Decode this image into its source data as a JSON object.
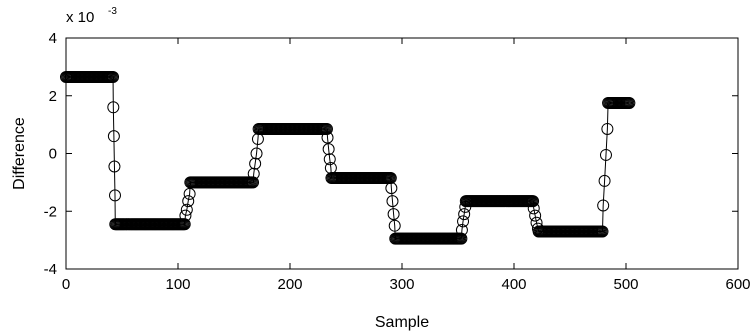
{
  "chart_data": {
    "type": "line",
    "title": "",
    "xlabel": "Sample",
    "ylabel": "Difference",
    "xlim": [
      0,
      600
    ],
    "ylim": [
      -4,
      4
    ],
    "x_ticks": [
      0,
      100,
      200,
      300,
      400,
      500,
      600
    ],
    "y_ticks": [
      -4,
      -2,
      0,
      2,
      4
    ],
    "scale_note": {
      "base": "x 10",
      "exponent": "-3"
    },
    "grid": false,
    "legend": "none",
    "marker": "circle-open",
    "line_color": "#000000",
    "series": [
      {
        "segments": [
          {
            "x0": 0,
            "x1": 42,
            "y": 2.65
          },
          {
            "from_x": 42,
            "to_x": 44,
            "transition": [
              1.6,
              0.6,
              -0.45,
              -1.45
            ]
          },
          {
            "x0": 44,
            "x1": 106,
            "y": -2.45
          },
          {
            "from_x": 106,
            "to_x": 111,
            "transition": [
              -2.15,
              -1.95,
              -1.65,
              -1.4
            ]
          },
          {
            "x0": 111,
            "x1": 167,
            "y": -1.0
          },
          {
            "from_x": 167,
            "to_x": 172,
            "transition": [
              -0.7,
              -0.35,
              0.0,
              0.5
            ]
          },
          {
            "x0": 172,
            "x1": 233,
            "y": 0.85
          },
          {
            "from_x": 233,
            "to_x": 237,
            "transition": [
              0.55,
              0.15,
              -0.2,
              -0.5
            ]
          },
          {
            "x0": 237,
            "x1": 290,
            "y": -0.85
          },
          {
            "from_x": 290,
            "to_x": 294,
            "transition": [
              -1.2,
              -1.65,
              -2.1,
              -2.5
            ]
          },
          {
            "x0": 294,
            "x1": 353,
            "y": -2.95
          },
          {
            "from_x": 353,
            "to_x": 357,
            "transition": [
              -2.65,
              -2.35,
              -2.1,
              -1.85
            ]
          },
          {
            "x0": 357,
            "x1": 417,
            "y": -1.65
          },
          {
            "from_x": 417,
            "to_x": 422,
            "transition": [
              -1.9,
              -2.15,
              -2.4,
              -2.6
            ]
          },
          {
            "x0": 422,
            "x1": 479,
            "y": -2.7
          },
          {
            "from_x": 479,
            "to_x": 484,
            "transition": [
              -1.8,
              -0.95,
              -0.05,
              0.85
            ]
          },
          {
            "x0": 484,
            "x1": 503,
            "y": 1.75
          }
        ]
      }
    ]
  }
}
